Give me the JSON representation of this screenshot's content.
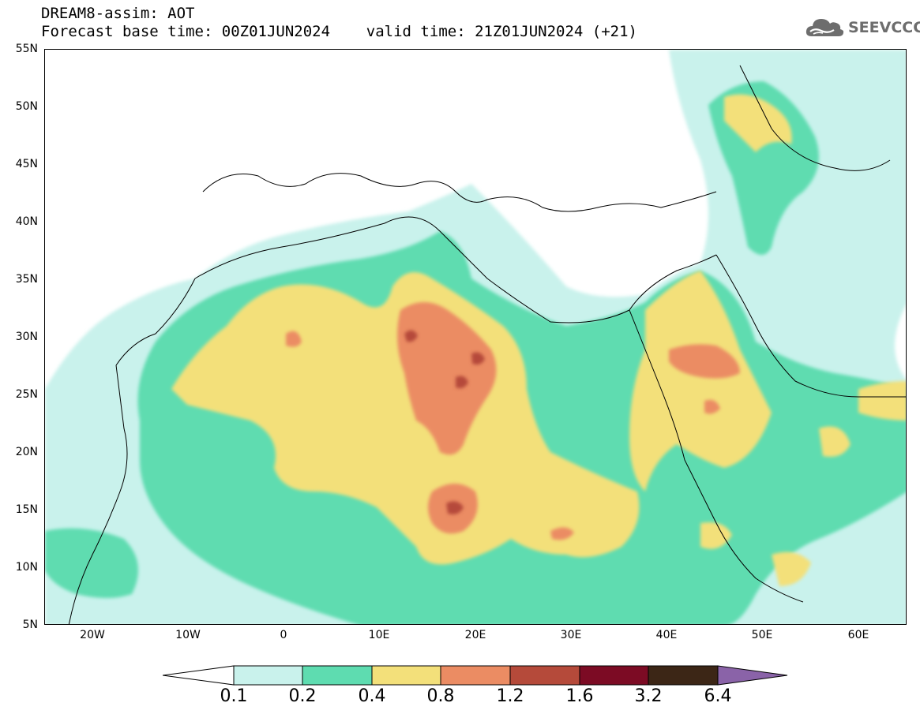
{
  "header": {
    "line1": "DREAM8-assim: AOT",
    "line2": "Forecast base time: 00Z01JUN2024    valid time: 21Z01JUN2024 (+21)"
  },
  "logo": {
    "text": "SEEVCCC",
    "icon": "cloud-icon",
    "color": "#6d6d6d"
  },
  "map": {
    "lon_range": [
      -25,
      65
    ],
    "lat_range": [
      5,
      55
    ],
    "lat_ticks": [
      {
        "value": 55,
        "label": "55N"
      },
      {
        "value": 50,
        "label": "50N"
      },
      {
        "value": 45,
        "label": "45N"
      },
      {
        "value": 40,
        "label": "40N"
      },
      {
        "value": 35,
        "label": "35N"
      },
      {
        "value": 30,
        "label": "30N"
      },
      {
        "value": 25,
        "label": "25N"
      },
      {
        "value": 20,
        "label": "20N"
      },
      {
        "value": 15,
        "label": "15N"
      },
      {
        "value": 10,
        "label": "10N"
      },
      {
        "value": 5,
        "label": "5N"
      }
    ],
    "lon_ticks": [
      {
        "value": -20,
        "label": "20W"
      },
      {
        "value": -10,
        "label": "10W"
      },
      {
        "value": 0,
        "label": "0"
      },
      {
        "value": 10,
        "label": "10E"
      },
      {
        "value": 20,
        "label": "20E"
      },
      {
        "value": 30,
        "label": "30E"
      },
      {
        "value": 40,
        "label": "40E"
      },
      {
        "value": 50,
        "label": "50E"
      },
      {
        "value": 60,
        "label": "60E"
      }
    ]
  },
  "colorbar": {
    "labels": [
      "0.1",
      "0.2",
      "0.4",
      "0.8",
      "1.2",
      "1.6",
      "3.2",
      "6.4"
    ],
    "colors": [
      "#c9f2ec",
      "#5edcb0",
      "#f3e07a",
      "#eb8c63",
      "#b54a3a",
      "#7c0b24",
      "#3c2616"
    ],
    "under_color": "#ffffff",
    "over_color": "#8a63a8"
  }
}
